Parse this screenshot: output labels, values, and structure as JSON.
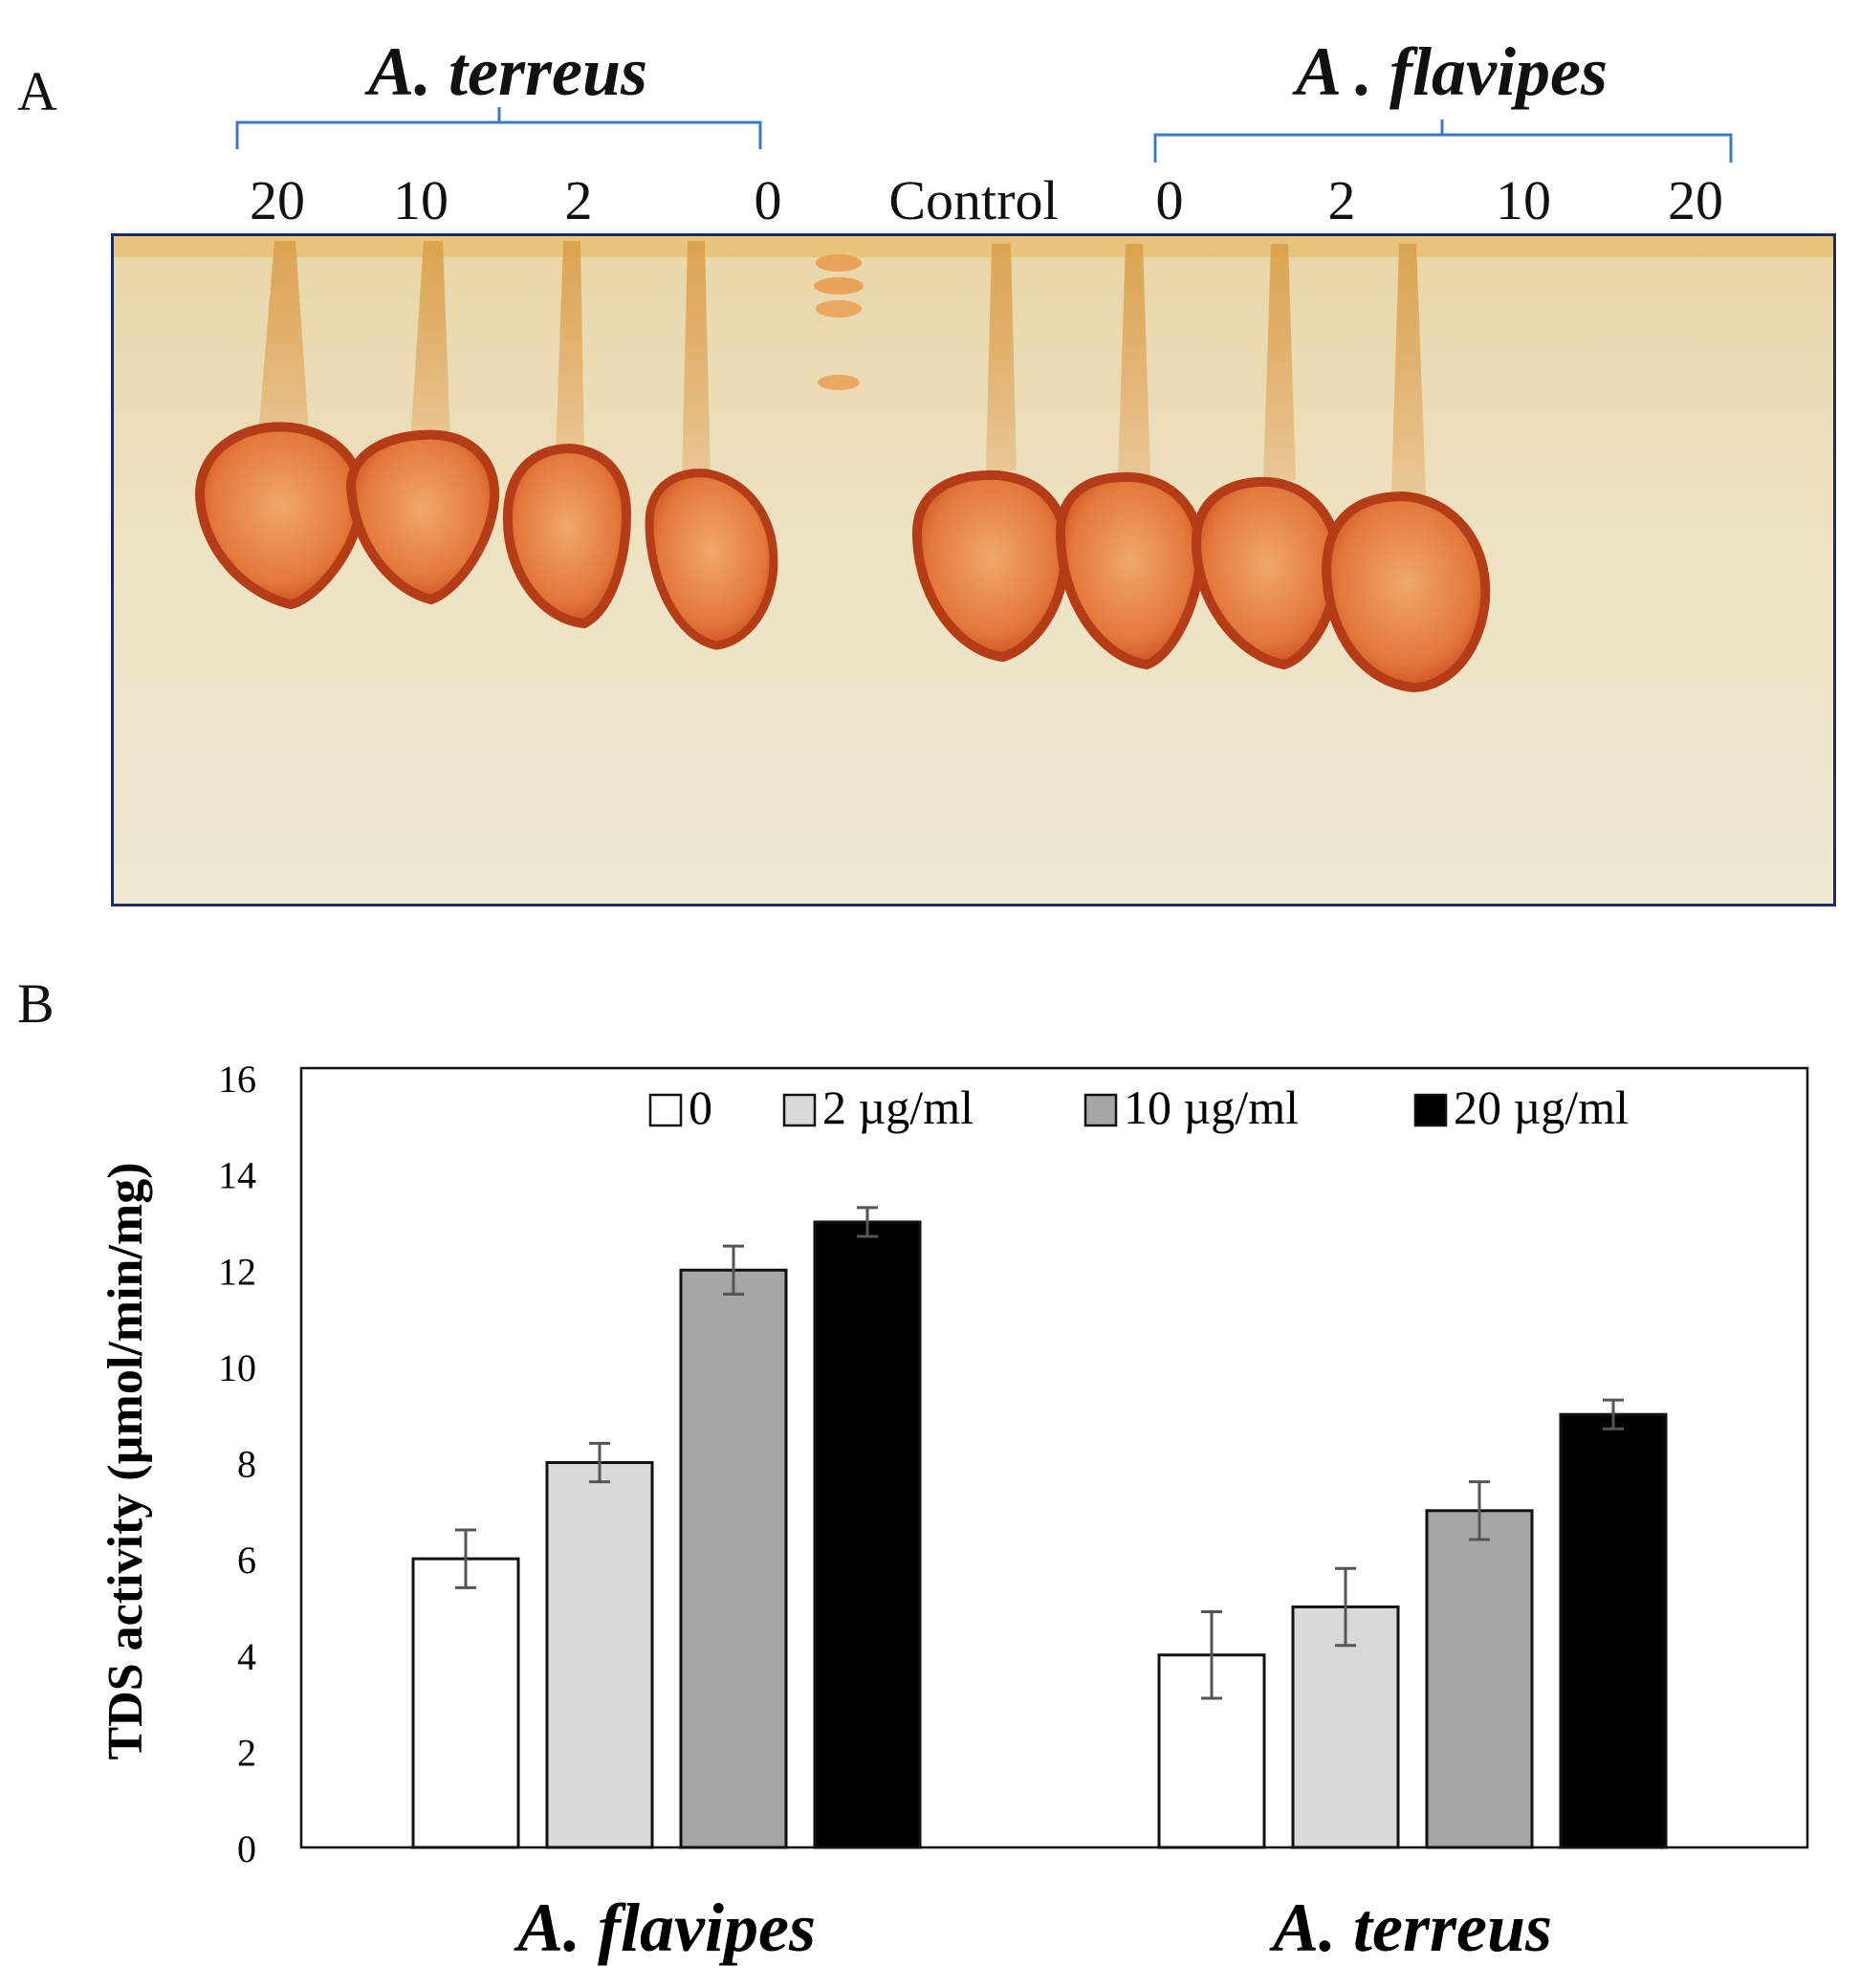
{
  "panel_a": {
    "letter": "A",
    "group_left": "A. terreus",
    "group_right": "A . flavipes",
    "lanes": [
      "20",
      "10",
      "2",
      "0",
      "Control",
      "0",
      "2",
      "10",
      "20"
    ]
  },
  "panel_b": {
    "letter": "B"
  },
  "chart_data": {
    "type": "bar",
    "title": "",
    "categories": [
      "A. flavipes",
      "A. terreus"
    ],
    "series": [
      {
        "name": "0",
        "values": [
          6.0,
          4.0
        ],
        "errors": [
          0.6,
          0.9
        ],
        "color": "#ffffff"
      },
      {
        "name": "2 µg/ml",
        "values": [
          8.0,
          5.0
        ],
        "errors": [
          0.4,
          0.8
        ],
        "color": "#d9d9d9"
      },
      {
        "name": "10 µg/ml",
        "values": [
          12.0,
          7.0
        ],
        "errors": [
          0.5,
          0.6
        ],
        "color": "#a6a6a6"
      },
      {
        "name": "20 µg/ml",
        "values": [
          13.0,
          9.0
        ],
        "errors": [
          0.3,
          0.3
        ],
        "color": "#000000"
      }
    ],
    "xlabel": "",
    "ylabel": "TDS activity (µmol/min/mg)",
    "ylim": [
      0,
      16
    ],
    "yticks": [
      "0",
      "2",
      "4",
      "6",
      "8",
      "10",
      "12",
      "14",
      "16"
    ],
    "grid": false,
    "legend_position": "top"
  }
}
